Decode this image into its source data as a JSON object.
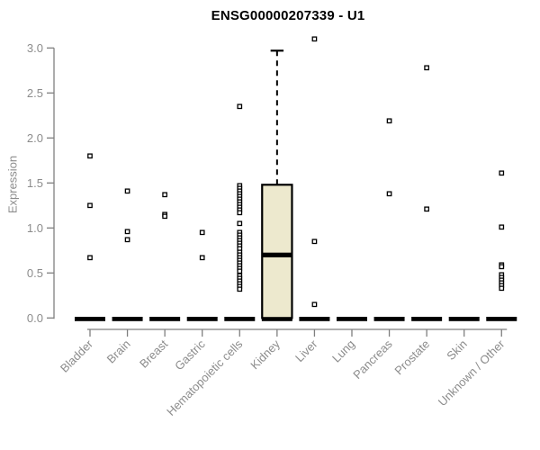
{
  "chart_data": {
    "type": "boxplot",
    "title": "ENSG00000207339 - U1",
    "ylabel": "Expression",
    "xlabel": "",
    "ylim": [
      0.0,
      3.2
    ],
    "yticks": [
      "0.0",
      "0.5",
      "1.0",
      "1.5",
      "2.0",
      "2.5",
      "3.0"
    ],
    "grid": false,
    "marker_style": "open-square",
    "colors": {
      "box_fill": "#ede9ce",
      "marker": "#000000",
      "zero_bar": "#000000",
      "axis": "#7f7f7f",
      "tick_label": "#8c8c8c",
      "title": "#000000"
    },
    "categories": [
      {
        "label": "Bladder",
        "points": [
          1.8,
          1.25,
          0.67
        ],
        "zero_bar": true
      },
      {
        "label": "Brain",
        "points": [
          1.41,
          0.96,
          0.87
        ],
        "zero_bar": true
      },
      {
        "label": "Breast",
        "points": [
          1.37,
          1.15,
          1.13
        ],
        "zero_bar": true
      },
      {
        "label": "Gastric",
        "points": [
          0.95,
          0.67
        ],
        "zero_bar": true
      },
      {
        "label": "Hematopoietic cells",
        "points": [
          2.35,
          1.47,
          1.44,
          1.41,
          1.38,
          1.35,
          1.32,
          1.29,
          1.26,
          1.23,
          1.2,
          1.17,
          1.05,
          0.95,
          0.92,
          0.89,
          0.86,
          0.83,
          0.8,
          0.77,
          0.73,
          0.7,
          0.67,
          0.64,
          0.61,
          0.58,
          0.55,
          0.52,
          0.47,
          0.44,
          0.41,
          0.38,
          0.35,
          0.32
        ],
        "zero_bar": true
      },
      {
        "label": "Kidney",
        "points": [],
        "zero_bar": true,
        "box": {
          "whisker_high": 2.97,
          "q3": 1.48,
          "median": 0.7,
          "q1": 0.0,
          "whisker_low": 0.0
        }
      },
      {
        "label": "Liver",
        "points": [
          3.1,
          0.85,
          0.15
        ],
        "zero_bar": true
      },
      {
        "label": "Lung",
        "points": [],
        "zero_bar": true
      },
      {
        "label": "Pancreas",
        "points": [
          2.19,
          1.38
        ],
        "zero_bar": true
      },
      {
        "label": "Prostate",
        "points": [
          2.78,
          1.21
        ],
        "zero_bar": true
      },
      {
        "label": "Skin",
        "points": [],
        "zero_bar": true
      },
      {
        "label": "Unknown / Other",
        "points": [
          1.61,
          1.01,
          0.59,
          0.57,
          0.48,
          0.45,
          0.42,
          0.39,
          0.36,
          0.33
        ],
        "zero_bar": true
      }
    ]
  }
}
